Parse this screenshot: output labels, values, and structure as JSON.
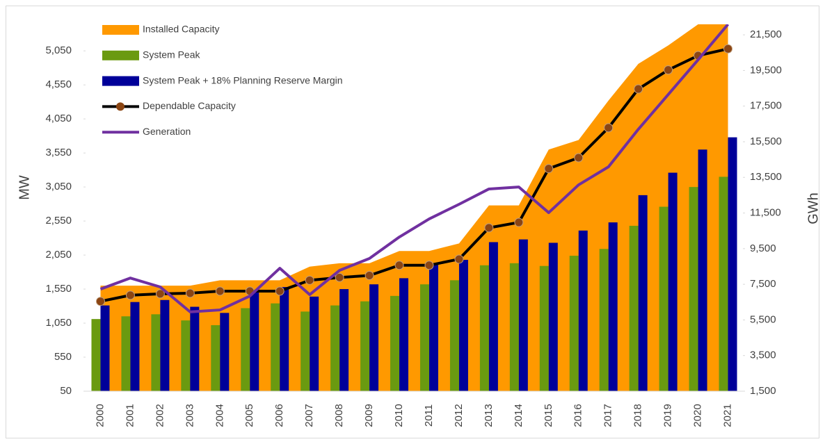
{
  "chart_data": {
    "type": "combo",
    "categories": [
      "2000",
      "2001",
      "2002",
      "2003",
      "2004",
      "2005",
      "2006",
      "2007",
      "2008",
      "2009",
      "2010",
      "2011",
      "2012",
      "2013",
      "2014",
      "2015",
      "2016",
      "2017",
      "2018",
      "2019",
      "2020",
      "2021"
    ],
    "y_label": "MW",
    "y2_label": "GWh",
    "ylim": [
      50,
      5440
    ],
    "yticks": [
      50,
      550,
      {
        "value": 1050,
        "label": "1,050"
      },
      {
        "value": 1550,
        "label": "1,550"
      },
      {
        "value": 2050,
        "label": "2,050"
      },
      {
        "value": 2550,
        "label": "2,550"
      },
      {
        "value": 3050,
        "label": "3,050"
      },
      {
        "value": 3550,
        "label": "3,550"
      },
      {
        "value": 4050,
        "label": "4,050"
      },
      {
        "value": 4550,
        "label": "4,550"
      },
      {
        "value": 5050,
        "label": "5,050"
      }
    ],
    "y2lim": [
      1500,
      22090
    ],
    "y2ticks": [
      {
        "value": 1500,
        "label": "1,500"
      },
      {
        "value": 3500,
        "label": "3,500"
      },
      {
        "value": 5500,
        "label": "5,500"
      },
      {
        "value": 7500,
        "label": "7,500"
      },
      {
        "value": 9500,
        "label": "9,500"
      },
      {
        "value": 11500,
        "label": "11,500"
      },
      {
        "value": 13500,
        "label": "13,500"
      },
      {
        "value": 15500,
        "label": "15,500"
      },
      {
        "value": 17500,
        "label": "17,500"
      },
      {
        "value": 19500,
        "label": "19,500"
      },
      {
        "value": 21500,
        "label": "21,500"
      }
    ],
    "legend": "top-left",
    "series": [
      {
        "name": "Installed Capacity",
        "type": "area",
        "color": "#ff9900",
        "values": [
          1600,
          1600,
          1600,
          1600,
          1680,
          1680,
          1680,
          1880,
          1930,
          1930,
          2110,
          2110,
          2220,
          2780,
          2780,
          3600,
          3740,
          4320,
          4860,
          5130,
          5440,
          5440
        ]
      },
      {
        "name": "System Peak",
        "type": "bar",
        "color": "#6a9a10",
        "values": [
          1110,
          1150,
          1180,
          1090,
          1020,
          1270,
          1340,
          1220,
          1310,
          1370,
          1450,
          1620,
          1680,
          1900,
          1930,
          1890,
          2040,
          2140,
          2480,
          2760,
          3050,
          3200
        ]
      },
      {
        "name": "System Peak + 18% Planning Reserve Margin",
        "type": "bar",
        "color": "#000099",
        "values": [
          1310,
          1360,
          1390,
          1290,
          1200,
          1500,
          1580,
          1440,
          1550,
          1620,
          1710,
          1910,
          1980,
          2240,
          2280,
          2230,
          2410,
          2530,
          2930,
          3260,
          3600,
          3780
        ]
      },
      {
        "name": "Dependable Capacity",
        "type": "line",
        "color": "#000000",
        "marker_color": "#8b4513",
        "values": [
          1370,
          1460,
          1480,
          1490,
          1520,
          1520,
          1520,
          1680,
          1720,
          1750,
          1900,
          1900,
          1990,
          2450,
          2530,
          3320,
          3480,
          3920,
          4490,
          4770,
          4980,
          5080
        ]
      },
      {
        "name": "Generation",
        "type": "line",
        "axis": "y2",
        "color": "#7030a0",
        "values": [
          7230,
          7850,
          7350,
          5950,
          6060,
          6840,
          8400,
          6920,
          8280,
          8950,
          10150,
          11170,
          11990,
          12850,
          12960,
          11520,
          13080,
          14090,
          16200,
          18150,
          20100,
          22090
        ]
      }
    ]
  }
}
